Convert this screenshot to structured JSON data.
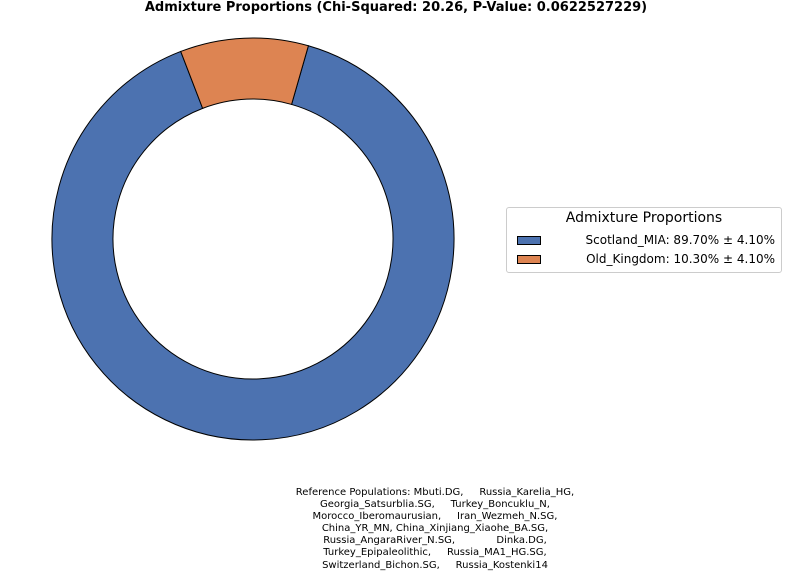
{
  "chart_data": {
    "type": "pie",
    "title": "Admixture Proportions (Chi-Squared: 20.26, P-Value: 0.0622527229)",
    "legend_title": "Admixture Proportions",
    "legend_position": "right",
    "series": [
      {
        "name": "Scotland_MIA",
        "value": 89.7,
        "error": 4.1,
        "color": "#4c72b0",
        "label": "Scotland_MIA: 89.70% ± 4.10%"
      },
      {
        "name": "Old_Kingdom",
        "value": 10.3,
        "error": 4.1,
        "color": "#dd8452",
        "label": "Old_Kingdom: 10.30% ± 4.10%"
      }
    ],
    "footnote_lines": [
      "Reference Populations: Mbuti.DG,     Russia_Karelia_HG,",
      "Georgia_Satsurblia.SG,     Turkey_Boncuklu_N,",
      "Morocco_Iberomaurusian,     Iran_Wezmeh_N.SG,",
      "China_YR_MN, China_Xinjiang_Xiaohe_BA.SG,",
      "Russia_AngaraRiver_N.SG,             Dinka.DG,",
      "Turkey_Epipaleolithic,     Russia_MA1_HG.SG,",
      "Switzerland_Bichon.SG,     Russia_Kostenki14"
    ]
  }
}
